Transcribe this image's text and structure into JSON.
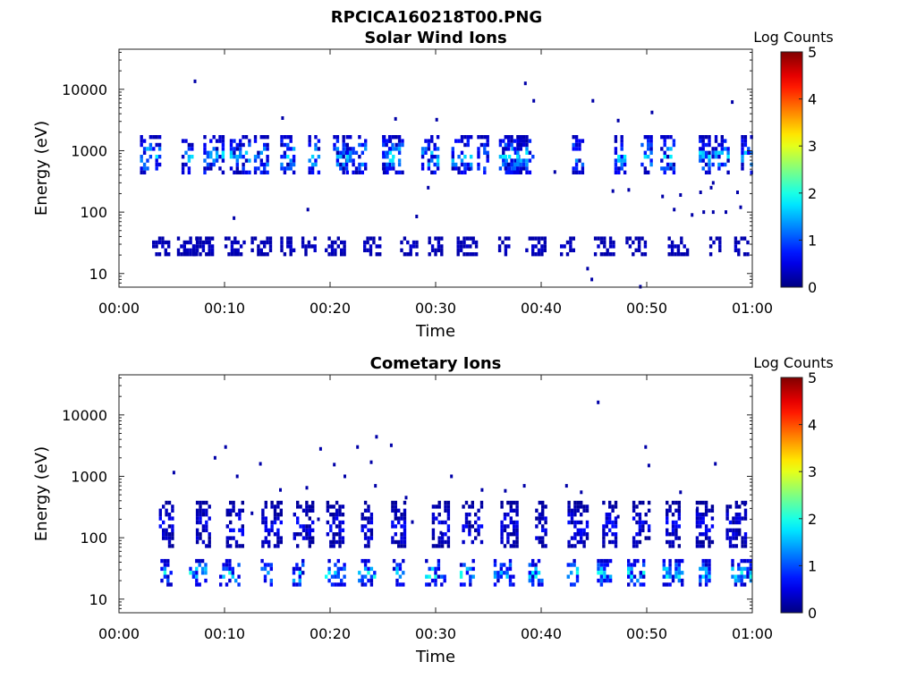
{
  "figure": {
    "title": "RPCICA160218T00.PNG"
  },
  "chart_data": [
    {
      "type": "heatmap",
      "title": "Solar Wind Ions",
      "xlabel": "Time",
      "ylabel": "Energy (eV)",
      "x_unit": "minutes",
      "xlim": [
        0,
        60
      ],
      "ylim": [
        6,
        45000
      ],
      "y_scale": "log",
      "x_ticks": [
        "00:00",
        "00:10",
        "00:20",
        "00:30",
        "00:40",
        "00:50",
        "01:00"
      ],
      "y_ticks": [
        "10",
        "100",
        "1000",
        "10000"
      ],
      "grid": false,
      "colorbar": {
        "title": "Log Counts",
        "range": [
          0,
          5
        ],
        "ticks": [
          "0",
          "1",
          "2",
          "3",
          "4",
          "5"
        ],
        "colormap": "jet"
      },
      "bands": [
        {
          "energy_range_eV": [
            18,
            40
          ],
          "times_min": [
            4,
            6.5,
            8,
            11,
            13.5,
            16,
            18,
            20.5,
            24,
            27.5,
            30,
            33,
            36.5,
            39.5,
            42.5,
            46,
            49,
            53,
            56.5,
            59
          ],
          "log_counts": [
            0.2,
            0.4
          ]
        },
        {
          "energy_range_eV": [
            400,
            1800
          ],
          "times_min": [
            3,
            6.5,
            9,
            11.5,
            13.5,
            16,
            18.5,
            21,
            22.5,
            25.5,
            26,
            29.5,
            32.5,
            34.5,
            37,
            37.5,
            38.5,
            43.5,
            47.5,
            50,
            52,
            55.5,
            57,
            59.5
          ],
          "log_counts": [
            0.2,
            1.8
          ]
        }
      ],
      "scatter": [
        [
          7.2,
          13500
        ],
        [
          38.5,
          12500
        ],
        [
          39.3,
          6500
        ],
        [
          44.9,
          6500
        ],
        [
          15.5,
          3400
        ],
        [
          30.1,
          3200
        ],
        [
          26.2,
          3300
        ],
        [
          47.3,
          3100
        ],
        [
          50.5,
          4200
        ],
        [
          58.1,
          6200
        ],
        [
          10.9,
          80
        ],
        [
          17.9,
          110
        ],
        [
          28.2,
          85
        ],
        [
          44.4,
          12
        ],
        [
          44.8,
          8
        ],
        [
          49.4,
          6.1
        ],
        [
          52.6,
          110
        ],
        [
          54.3,
          90
        ],
        [
          55.4,
          100
        ],
        [
          56.3,
          100
        ],
        [
          57.5,
          100
        ],
        [
          58.9,
          120
        ],
        [
          51.5,
          180
        ],
        [
          53.2,
          190
        ],
        [
          55.1,
          210
        ],
        [
          56.1,
          250
        ],
        [
          58.6,
          210
        ],
        [
          29.3,
          250
        ],
        [
          33.2,
          500
        ],
        [
          41.3,
          450
        ],
        [
          46.8,
          220
        ],
        [
          48.3,
          230
        ],
        [
          56.3,
          300
        ]
      ]
    },
    {
      "type": "heatmap",
      "title": "Cometary Ions",
      "xlabel": "Time",
      "ylabel": "Energy (eV)",
      "x_unit": "minutes",
      "xlim": [
        0,
        60
      ],
      "ylim": [
        6,
        45000
      ],
      "y_scale": "log",
      "x_ticks": [
        "00:00",
        "00:10",
        "00:20",
        "00:30",
        "00:40",
        "00:50",
        "01:00"
      ],
      "y_ticks": [
        "10",
        "100",
        "1000",
        "10000"
      ],
      "grid": false,
      "colorbar": {
        "title": "Log Counts",
        "range": [
          0,
          5
        ],
        "ticks": [
          "0",
          "1",
          "2",
          "3",
          "4",
          "5"
        ],
        "colormap": "jet"
      },
      "bands": [
        {
          "energy_range_eV": [
            15,
            45
          ],
          "times_min": [
            4.5,
            7.5,
            10.5,
            14,
            17,
            20.5,
            23.5,
            26.5,
            30,
            33,
            36.5,
            39.5,
            43,
            46,
            49,
            52.5,
            55.5,
            59
          ],
          "log_counts": [
            0.3,
            2.0
          ]
        },
        {
          "energy_range_eV": [
            60,
            400
          ],
          "times_min": [
            4.5,
            8,
            11,
            14.5,
            17.5,
            20.5,
            23.5,
            26.5,
            30.5,
            33.5,
            37,
            40,
            43.5,
            46.5,
            49.5,
            52.5,
            55.5,
            58.5
          ],
          "log_counts": [
            0.1,
            0.7
          ]
        }
      ],
      "scatter": [
        [
          5.2,
          1150
        ],
        [
          9.1,
          2000
        ],
        [
          10.1,
          3000
        ],
        [
          11.2,
          1000
        ],
        [
          13.4,
          1600
        ],
        [
          15.3,
          600
        ],
        [
          17.8,
          650
        ],
        [
          19.1,
          2800
        ],
        [
          20.4,
          1550
        ],
        [
          21.4,
          1000
        ],
        [
          22.6,
          3000
        ],
        [
          23.9,
          1700
        ],
        [
          24.4,
          4400
        ],
        [
          25.8,
          3200
        ],
        [
          24.3,
          700
        ],
        [
          27.8,
          180
        ],
        [
          30.5,
          120
        ],
        [
          34.4,
          600
        ],
        [
          36.6,
          580
        ],
        [
          38.4,
          700
        ],
        [
          42.4,
          700
        ],
        [
          43.8,
          550
        ],
        [
          45.4,
          16000
        ],
        [
          49.9,
          3000
        ],
        [
          50.2,
          1500
        ],
        [
          56.5,
          1600
        ],
        [
          53.2,
          550
        ],
        [
          54.8,
          300
        ],
        [
          59.3,
          350
        ],
        [
          31.5,
          1000
        ],
        [
          40.1,
          250
        ],
        [
          27.2,
          450
        ],
        [
          47.3,
          220
        ],
        [
          18.9,
          200
        ],
        [
          12.6,
          250
        ]
      ]
    }
  ]
}
